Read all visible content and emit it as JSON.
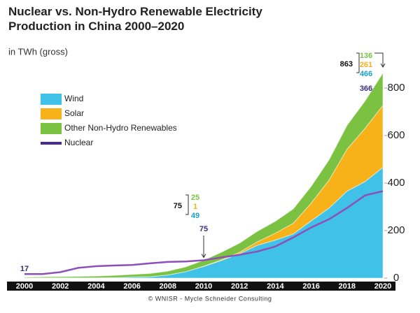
{
  "chart_data": {
    "type": "stacked_area_line",
    "title": "Nuclear vs. Non-Hydro Renewable Electricity Production in China 2000–2020",
    "subtitle": "in TWh (gross)",
    "credit": "© WNISR - Mycle Schneider Consulting",
    "x": [
      2000,
      2001,
      2002,
      2003,
      2004,
      2005,
      2006,
      2007,
      2008,
      2009,
      2010,
      2011,
      2012,
      2013,
      2014,
      2015,
      2016,
      2017,
      2018,
      2019,
      2020
    ],
    "series": [
      {
        "name": "Wind",
        "color": "#3fc1e8",
        "kind": "area",
        "values": [
          0.6,
          1,
          1,
          1,
          1,
          2,
          4,
          6,
          13,
          27,
          49,
          74,
          103,
          138,
          160,
          186,
          241,
          295,
          366,
          406,
          466
        ]
      },
      {
        "name": "Solar",
        "color": "#f7b21a",
        "kind": "area",
        "values": [
          0,
          0,
          0,
          0,
          0,
          0,
          0,
          0,
          0,
          0,
          1,
          3,
          6,
          15,
          29,
          45,
          75,
          118,
          177,
          224,
          261
        ]
      },
      {
        "name": "Other Non-Hydro Renewables",
        "color": "#7cc242",
        "kind": "area",
        "values": [
          3,
          4,
          5,
          6,
          7,
          9,
          11,
          13,
          16,
          20,
          25,
          32,
          38,
          44,
          50,
          60,
          70,
          85,
          100,
          115,
          136
        ]
      },
      {
        "name": "Nuclear",
        "color": "#4b2a8f",
        "kind": "line",
        "values": [
          17,
          17,
          25,
          43,
          50,
          53,
          55,
          62,
          68,
          70,
          75,
          87,
          98,
          112,
          133,
          171,
          213,
          248,
          295,
          348,
          366
        ]
      }
    ],
    "annotations": [
      {
        "x": 2010,
        "total": 75
      },
      {
        "x": 2020,
        "total": 863
      }
    ],
    "xlim": [
      2000,
      2020
    ],
    "xticks": [
      2000,
      2002,
      2004,
      2006,
      2008,
      2010,
      2012,
      2014,
      2016,
      2018,
      2020
    ],
    "ylim": [
      0,
      880
    ],
    "yticks": [
      0,
      200,
      400,
      600,
      800
    ],
    "legend": "upper-left"
  }
}
